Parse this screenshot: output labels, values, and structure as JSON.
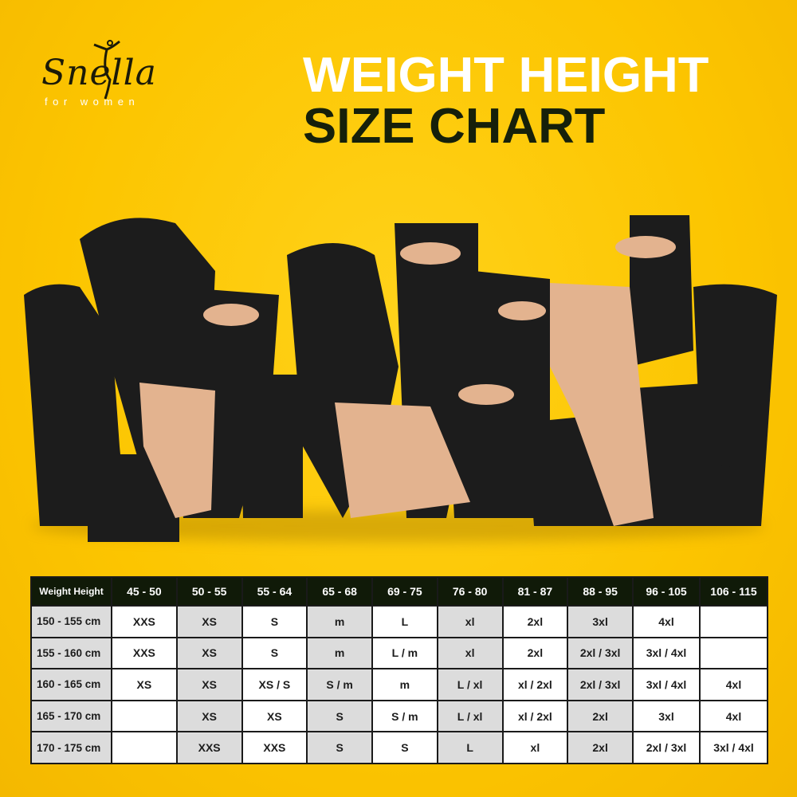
{
  "brand": {
    "name": "Snella",
    "tagline": "for women"
  },
  "title": {
    "line1": "WEIGHT HEIGHT",
    "line2": "SIZE CHART"
  },
  "colors": {
    "background": "#fcc500",
    "header": "#101a08",
    "gray_cell": "#dcdcdc",
    "title_dark": "#16200a"
  },
  "table": {
    "corner": "Weight Height",
    "columns": [
      "45 - 50",
      "50 - 55",
      "55 - 64",
      "65 - 68",
      "69 - 75",
      "76 - 80",
      "81 - 87",
      "88 - 95",
      "96 - 105",
      "106 - 115"
    ],
    "rows": [
      {
        "height": "150 - 155 cm",
        "cells": [
          "XXS",
          "XS",
          "S",
          "m",
          "L",
          "xl",
          "2xl",
          "3xl",
          "4xl",
          ""
        ]
      },
      {
        "height": "155 - 160 cm",
        "cells": [
          "XXS",
          "XS",
          "S",
          "m",
          "L / m",
          "xl",
          "2xl",
          "2xl / 3xl",
          "3xl / 4xl",
          ""
        ]
      },
      {
        "height": "160 - 165 cm",
        "cells": [
          "XS",
          "XS",
          "XS / S",
          "S / m",
          "m",
          "L / xl",
          "xl / 2xl",
          "2xl / 3xl",
          "3xl / 4xl",
          "4xl"
        ]
      },
      {
        "height": "165 - 170 cm",
        "cells": [
          "",
          "XS",
          "XS",
          "S",
          "S / m",
          "L / xl",
          "xl / 2xl",
          "2xl",
          "3xl",
          "4xl"
        ]
      },
      {
        "height": "170 - 175 cm",
        "cells": [
          "",
          "XXS",
          "XXS",
          "S",
          "S",
          "L",
          "xl",
          "2xl",
          "2xl / 3xl",
          "3xl / 4xl"
        ]
      }
    ]
  }
}
